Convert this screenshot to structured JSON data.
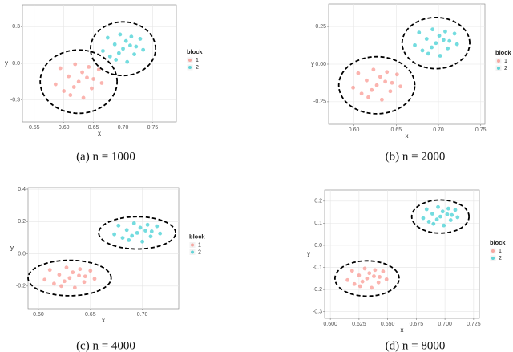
{
  "chart_data": [
    {
      "type": "scatter",
      "caption": "(a) n = 1000",
      "x_label": "x",
      "y_label": "y",
      "legend_title": "block",
      "grid": true,
      "xlim": [
        0.53,
        0.79
      ],
      "xticks": [
        0.55,
        {
          "value": 0.6,
          "label": "0.60"
        },
        0.65,
        {
          "value": 0.7,
          "label": "0.70"
        },
        0.75
      ],
      "ylim": [
        -0.48,
        0.48
      ],
      "yticks": [
        -0.3,
        {
          "value": 0,
          "label": "0.0"
        },
        0.3
      ],
      "series": [
        {
          "name": "1",
          "color": "#f8766d",
          "x": [
            0.625,
            0.639,
            0.608,
            0.647,
            0.6,
            0.659,
            0.594,
            0.633,
            0.619,
            0.664,
            0.586,
            0.642,
            0.611,
            0.65,
            0.617,
            0.631
          ],
          "y": [
            -0.15,
            -0.117,
            -0.106,
            -0.205,
            -0.227,
            -0.051,
            -0.04,
            -0.282,
            -0.007,
            -0.161,
            -0.172,
            -0.029,
            -0.26,
            -0.128,
            -0.194,
            -0.073
          ],
          "ellipse": {
            "cx": 0.625,
            "cy": -0.15,
            "rx": 0.065,
            "ry": 0.26
          }
        },
        {
          "name": "2",
          "color": "#00bfc4",
          "x": [
            0.7,
            0.712,
            0.686,
            0.719,
            0.678,
            0.729,
            0.674,
            0.707,
            0.695,
            0.734,
            0.666,
            0.714,
            0.688,
            0.722,
            0.693,
            0.705
          ],
          "y": [
            0.12,
            0.147,
            0.156,
            0.075,
            0.057,
            0.201,
            0.21,
            0.012,
            0.237,
            0.111,
            0.102,
            0.219,
            0.03,
            0.138,
            0.084,
            0.183
          ],
          "ellipse": {
            "cx": 0.7,
            "cy": 0.12,
            "rx": 0.055,
            "ry": 0.22
          }
        }
      ]
    },
    {
      "type": "scatter",
      "caption": "(b) n = 2000",
      "x_label": "x",
      "y_label": "y",
      "legend_title": "block",
      "grid": true,
      "xlim": [
        0.57,
        0.755
      ],
      "xticks": [
        {
          "value": 0.6,
          "label": "0.60"
        },
        0.65,
        {
          "value": 0.7,
          "label": "0.70"
        },
        0.75
      ],
      "ylim": [
        -0.4,
        0.4
      ],
      "yticks": [
        -0.25,
        {
          "value": 0,
          "label": "0.00"
        },
        0.25
      ],
      "series": [
        {
          "name": "1",
          "color": "#f8766d",
          "x": [
            0.627,
            0.637,
            0.615,
            0.643,
            0.609,
            0.651,
            0.605,
            0.633,
            0.623,
            0.655,
            0.599,
            0.639,
            0.617,
            0.645,
            0.621,
            0.631
          ],
          "y": [
            -0.14,
            -0.116,
            -0.108,
            -0.18,
            -0.196,
            -0.068,
            -0.06,
            -0.236,
            -0.036,
            -0.148,
            -0.156,
            -0.052,
            -0.22,
            -0.124,
            -0.172,
            -0.084
          ],
          "ellipse": {
            "cx": 0.627,
            "cy": -0.14,
            "rx": 0.045,
            "ry": 0.19
          }
        },
        {
          "name": "2",
          "color": "#00bfc4",
          "x": [
            0.697,
            0.706,
            0.686,
            0.711,
            0.681,
            0.719,
            0.677,
            0.702,
            0.693,
            0.722,
            0.672,
            0.708,
            0.688,
            0.713,
            0.692,
            0.701
          ],
          "y": [
            0.14,
            0.161,
            0.168,
            0.105,
            0.091,
            0.203,
            0.21,
            0.056,
            0.231,
            0.133,
            0.126,
            0.217,
            0.07,
            0.154,
            0.112,
            0.189
          ],
          "ellipse": {
            "cx": 0.697,
            "cy": 0.14,
            "rx": 0.04,
            "ry": 0.17
          }
        }
      ]
    },
    {
      "type": "scatter",
      "caption": "(c) n = 4000",
      "x_label": "x",
      "y_label": "y",
      "legend_title": "block",
      "grid": true,
      "xlim": [
        0.59,
        0.735
      ],
      "xticks": [
        {
          "value": 0.6,
          "label": "0.60"
        },
        0.65,
        {
          "value": 0.7,
          "label": "0.70"
        }
      ],
      "ylim": [
        -0.34,
        0.41
      ],
      "yticks": [
        -0.2,
        {
          "value": 0,
          "label": "0.0"
        },
        0.2,
        0.4
      ],
      "series": [
        {
          "name": "1",
          "color": "#f8766d",
          "x": [
            0.63,
            0.639,
            0.62,
            0.644,
            0.615,
            0.65,
            0.611,
            0.635,
            0.627,
            0.654,
            0.606,
            0.64,
            0.622,
            0.645,
            0.625,
            0.633
          ],
          "y": [
            -0.15,
            -0.135,
            -0.13,
            -0.175,
            -0.185,
            -0.105,
            -0.1,
            -0.21,
            -0.085,
            -0.155,
            -0.16,
            -0.095,
            -0.2,
            -0.14,
            -0.17,
            -0.115
          ],
          "ellipse": {
            "cx": 0.63,
            "cy": -0.15,
            "rx": 0.04,
            "ry": 0.11
          }
        },
        {
          "name": "2",
          "color": "#00bfc4",
          "x": [
            0.695,
            0.703,
            0.685,
            0.708,
            0.681,
            0.714,
            0.677,
            0.7,
            0.692,
            0.717,
            0.673,
            0.705,
            0.687,
            0.709,
            0.69,
            0.698
          ],
          "y": [
            0.13,
            0.144,
            0.148,
            0.108,
            0.099,
            0.171,
            0.175,
            0.076,
            0.189,
            0.126,
            0.121,
            0.18,
            0.085,
            0.139,
            0.112,
            0.162
          ],
          "ellipse": {
            "cx": 0.695,
            "cy": 0.13,
            "rx": 0.037,
            "ry": 0.1
          }
        }
      ]
    },
    {
      "type": "scatter",
      "caption": "(d) n = 8000",
      "x_label": "x",
      "y_label": "y",
      "legend_title": "block",
      "grid": true,
      "xlim": [
        0.595,
        0.73
      ],
      "xticks": [
        {
          "value": 0.6,
          "label": "0.600"
        },
        0.625,
        {
          "value": 0.65,
          "label": "0.650"
        },
        0.675,
        {
          "value": 0.7,
          "label": "0.700"
        },
        0.725
      ],
      "ylim": [
        -0.33,
        0.25
      ],
      "yticks": [
        -0.3,
        -0.2,
        -0.1,
        {
          "value": 0,
          "label": "0.0"
        },
        0.1,
        0.2
      ],
      "series": [
        {
          "name": "1",
          "color": "#f8766d",
          "x": [
            0.632,
            0.638,
            0.625,
            0.642,
            0.621,
            0.646,
            0.619,
            0.636,
            0.63,
            0.649,
            0.615,
            0.639,
            0.626,
            0.643,
            0.628,
            0.634
          ],
          "y": [
            -0.15,
            -0.14,
            -0.136,
            -0.168,
            -0.175,
            -0.118,
            -0.115,
            -0.192,
            -0.105,
            -0.154,
            -0.157,
            -0.112,
            -0.185,
            -0.143,
            -0.164,
            -0.126
          ],
          "ellipse": {
            "cx": 0.632,
            "cy": -0.15,
            "rx": 0.028,
            "ry": 0.08
          }
        },
        {
          "name": "2",
          "color": "#00bfc4",
          "x": [
            0.696,
            0.702,
            0.689,
            0.705,
            0.686,
            0.709,
            0.684,
            0.699,
            0.694,
            0.711,
            0.681,
            0.703,
            0.69,
            0.706,
            0.693,
            0.698
          ],
          "y": [
            0.13,
            0.14,
            0.143,
            0.114,
            0.107,
            0.16,
            0.163,
            0.09,
            0.173,
            0.127,
            0.123,
            0.166,
            0.097,
            0.137,
            0.117,
            0.153
          ],
          "ellipse": {
            "cx": 0.696,
            "cy": 0.13,
            "rx": 0.025,
            "ry": 0.075
          }
        }
      ]
    }
  ]
}
